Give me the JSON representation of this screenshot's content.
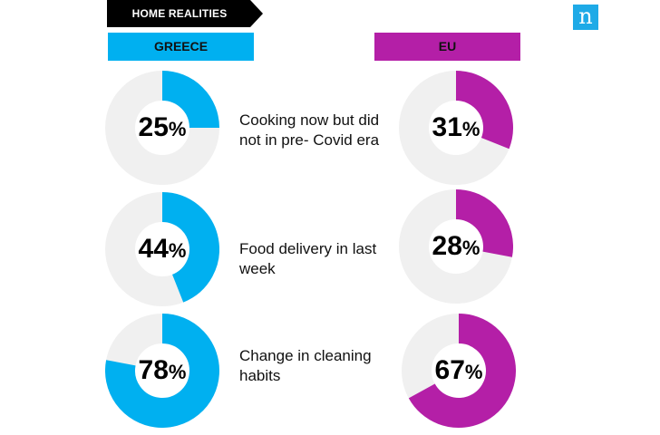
{
  "banner": {
    "title": "HOME REALITIES"
  },
  "logo": {
    "glyph": "n"
  },
  "headers": {
    "left": "GREECE",
    "right": "EU"
  },
  "colors": {
    "greece": "#00b0f0",
    "eu": "#b41fa7",
    "track": "#f0f0f0",
    "banner": "#000000",
    "logo": "#1eaae7"
  },
  "rows": [
    {
      "label": "Cooking now but did not in pre- Covid era",
      "greece": "25",
      "eu": "31"
    },
    {
      "label": "Food delivery in last week",
      "greece": "44",
      "eu": "28"
    },
    {
      "label": "Change in cleaning habits",
      "greece": "78",
      "eu": "67"
    }
  ],
  "chart_data": {
    "type": "pie",
    "title": "HOME REALITIES",
    "unit": "%",
    "categories": [
      "Cooking now but did not in pre- Covid era",
      "Food delivery in last week",
      "Change in cleaning habits"
    ],
    "series": [
      {
        "name": "GREECE",
        "values": [
          25,
          44,
          78
        ]
      },
      {
        "name": "EU",
        "values": [
          31,
          28,
          67
        ]
      }
    ]
  }
}
